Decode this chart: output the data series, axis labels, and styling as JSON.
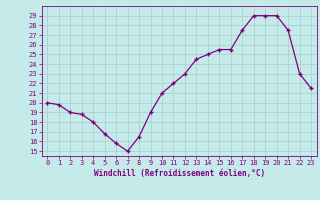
{
  "x": [
    0,
    1,
    2,
    3,
    4,
    5,
    6,
    7,
    8,
    9,
    10,
    11,
    12,
    13,
    14,
    15,
    16,
    17,
    18,
    19,
    20,
    21,
    22,
    23
  ],
  "y": [
    20,
    19.8,
    19,
    18.8,
    18,
    16.8,
    15.8,
    15,
    16.5,
    19,
    21,
    22,
    23,
    24.5,
    25,
    25.5,
    25.5,
    27.5,
    29,
    29,
    29,
    27.5,
    23,
    21.5
  ],
  "line_color": "#7f007f",
  "marker": "+",
  "marker_size": 3,
  "bg_color": "#c5eaea",
  "grid_color": "#a8cccc",
  "xlabel": "Windchill (Refroidissement éolien,°C)",
  "xlabel_color": "#7f007f",
  "tick_color": "#7f007f",
  "ylim": [
    14.5,
    30
  ],
  "xlim": [
    -0.5,
    23.5
  ],
  "yticks": [
    15,
    16,
    17,
    18,
    19,
    20,
    21,
    22,
    23,
    24,
    25,
    26,
    27,
    28,
    29
  ],
  "xticks": [
    0,
    1,
    2,
    3,
    4,
    5,
    6,
    7,
    8,
    9,
    10,
    11,
    12,
    13,
    14,
    15,
    16,
    17,
    18,
    19,
    20,
    21,
    22,
    23
  ]
}
